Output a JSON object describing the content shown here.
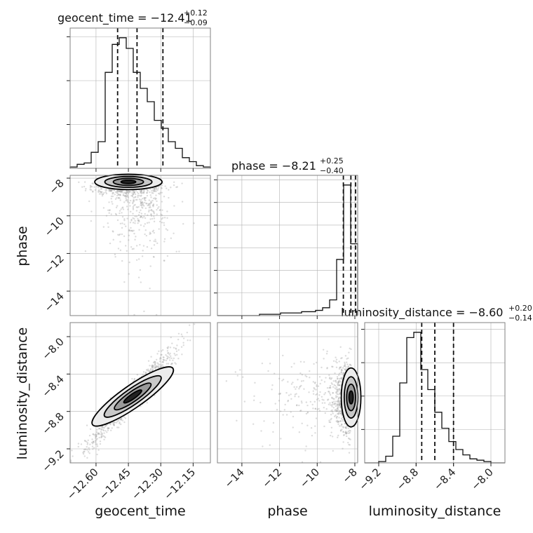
{
  "chart_data": {
    "type": "corner",
    "parameters": [
      {
        "name": "geocent_time",
        "axis_label": "geocent_time",
        "title": "geocent_time = −12.41",
        "median": -12.41,
        "plus": "+0.12",
        "minus": "−0.09",
        "quantiles": [
          -12.5,
          -12.41,
          -12.29
        ],
        "range": [
          -12.72,
          -12.07
        ],
        "ticks": [
          -12.6,
          -12.45,
          -12.3,
          -12.15
        ],
        "tick_labels": [
          "−12.60",
          "−12.45",
          "−12.30",
          "−12.15"
        ],
        "hist_edges": [
          -12.72,
          -12.07
        ],
        "hist_counts": [
          1,
          3,
          4,
          12,
          20,
          72,
          93,
          98,
          90,
          72,
          60,
          50,
          36,
          30,
          20,
          15,
          8,
          5,
          2,
          1
        ],
        "hist_yticks": [
          100,
          200,
          300
        ]
      },
      {
        "name": "phase",
        "axis_label": "phase",
        "title": "phase = −8.21",
        "median": -8.21,
        "plus": "+0.25",
        "minus": "−0.40",
        "quantiles": [
          -8.61,
          -8.21,
          -7.96
        ],
        "range": [
          -15.3,
          -7.85
        ],
        "ticks": [
          -14,
          -12,
          -10,
          -8
        ],
        "tick_labels": [
          "−14",
          "−12",
          "−10",
          "−8"
        ],
        "hist_edges": [
          -15.3,
          -7.85
        ],
        "hist_counts": [
          0,
          0,
          0,
          0,
          0,
          0,
          1,
          1,
          1,
          2,
          2,
          2,
          3,
          3,
          4,
          6,
          12,
          43,
          100,
          55
        ],
        "hist_yticks": [
          500,
          1000,
          1500,
          2000,
          2500,
          3000
        ]
      },
      {
        "name": "luminosity_distance",
        "axis_label": "luminosity_distance",
        "title": "luminosity_distance = −8.60",
        "median": -8.6,
        "plus": "+0.20",
        "minus": "−0.14",
        "quantiles": [
          -8.74,
          -8.6,
          -8.4
        ],
        "range": [
          -9.35,
          -7.85
        ],
        "ticks": [
          -9.2,
          -8.8,
          -8.4,
          -8.0
        ],
        "tick_labels": [
          "−9.2",
          "−8.8",
          "−8.4",
          "−8.0"
        ],
        "hist_edges": [
          -9.35,
          -7.85
        ],
        "hist_counts": [
          0,
          0,
          1,
          5,
          20,
          60,
          94,
          98,
          70,
          55,
          38,
          26,
          16,
          10,
          6,
          3,
          2,
          1,
          0,
          0
        ],
        "hist_yticks": [
          100,
          200,
          300,
          400
        ]
      }
    ],
    "scatter_summary": [
      {
        "x": "geocent_time",
        "y": "phase",
        "mode": [
          -12.45,
          -8.2
        ]
      },
      {
        "x": "geocent_time",
        "y": "luminosity_distance",
        "mode": [
          -12.43,
          -8.64
        ],
        "correlation": 0.95
      },
      {
        "x": "phase",
        "y": "luminosity_distance",
        "mode": [
          -8.2,
          -8.65
        ]
      }
    ],
    "grid": true,
    "colors": {
      "points": "#9a9a9a",
      "lines": "#111111",
      "density": "#000000"
    }
  }
}
